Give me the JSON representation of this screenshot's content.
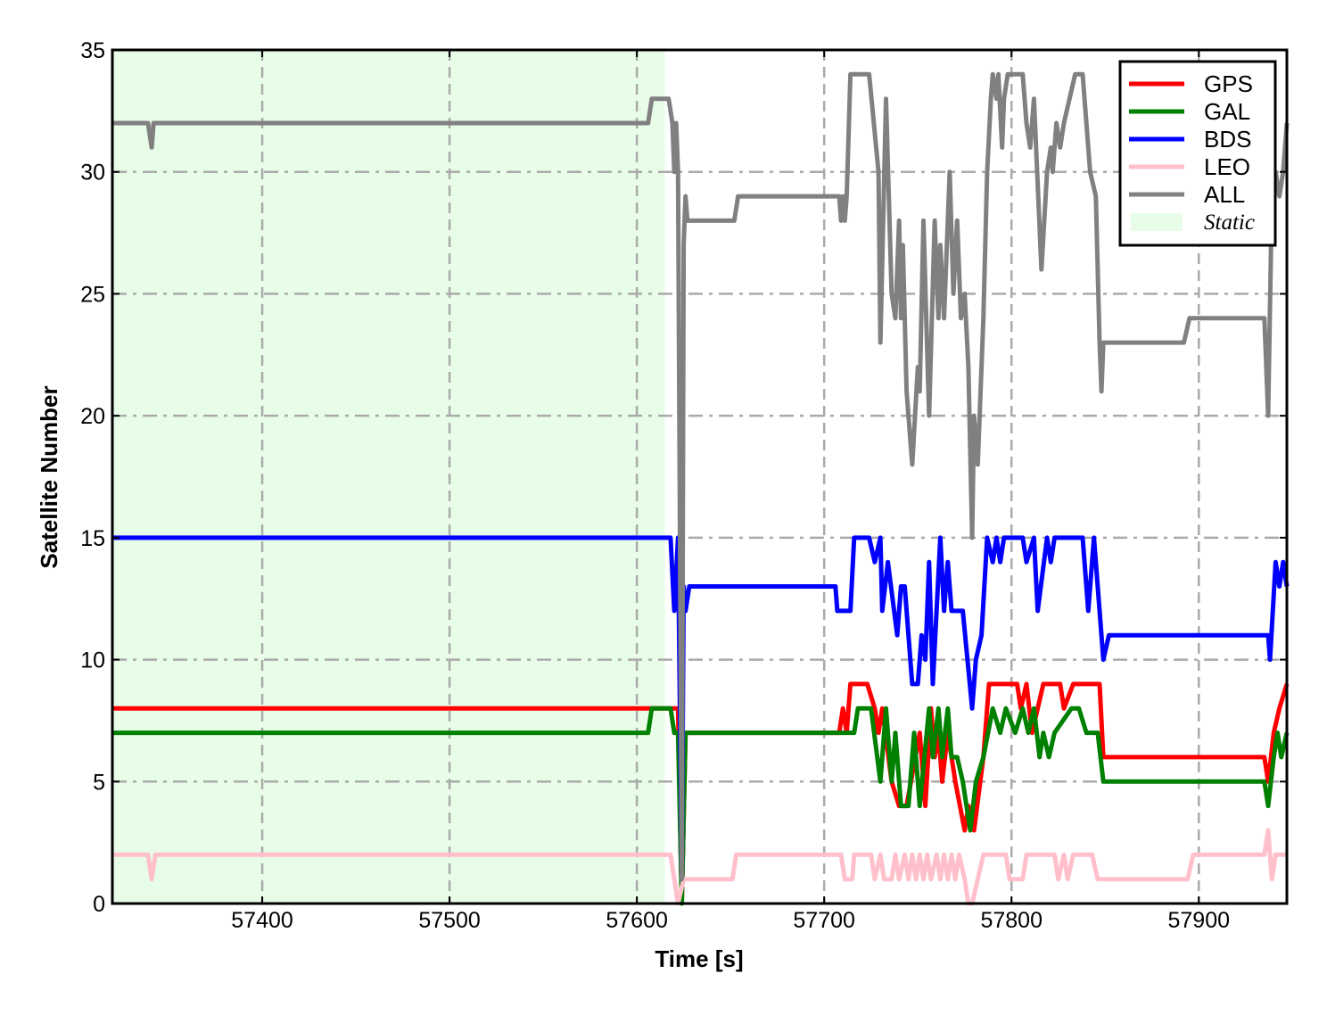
{
  "chart_data": {
    "type": "line",
    "xlabel": "Time [s]",
    "ylabel": "Satellite Number",
    "xlim": [
      57320,
      57947
    ],
    "ylim": [
      0,
      35
    ],
    "xticks": [
      57400,
      57500,
      57600,
      57700,
      57800,
      57900
    ],
    "yticks": [
      0,
      5,
      10,
      15,
      20,
      25,
      30,
      35
    ],
    "grid": true,
    "legend_position": "top-right",
    "shaded_region": {
      "name": "Static",
      "x": [
        57320,
        57615
      ],
      "color": "#e8fde8"
    },
    "series": [
      {
        "name": "GPS",
        "color": "#ff0000",
        "points": [
          [
            57320,
            8
          ],
          [
            57618,
            8
          ],
          [
            57622,
            8
          ],
          [
            57624,
            0
          ],
          [
            57626,
            7
          ],
          [
            57708,
            7
          ],
          [
            57710,
            8
          ],
          [
            57712,
            7
          ],
          [
            57714,
            9
          ],
          [
            57723,
            9
          ],
          [
            57727,
            8
          ],
          [
            57729,
            7
          ],
          [
            57731,
            8
          ],
          [
            57736,
            5
          ],
          [
            57740,
            4
          ],
          [
            57744,
            4
          ],
          [
            57751,
            7
          ],
          [
            57754,
            4
          ],
          [
            57757,
            8
          ],
          [
            57759,
            6
          ],
          [
            57761,
            7
          ],
          [
            57763,
            5
          ],
          [
            57766,
            7
          ],
          [
            57770,
            5
          ],
          [
            57775,
            3
          ],
          [
            57777,
            4
          ],
          [
            57780,
            3
          ],
          [
            57785,
            6
          ],
          [
            57788,
            9
          ],
          [
            57803,
            9
          ],
          [
            57805,
            8
          ],
          [
            57808,
            9
          ],
          [
            57811,
            7
          ],
          [
            57817,
            9
          ],
          [
            57826,
            9
          ],
          [
            57828,
            8
          ],
          [
            57833,
            9
          ],
          [
            57847,
            9
          ],
          [
            57849,
            6
          ],
          [
            57935,
            6
          ],
          [
            57937,
            5
          ],
          [
            57940,
            7
          ],
          [
            57943,
            8
          ],
          [
            57947,
            9
          ]
        ]
      },
      {
        "name": "GAL",
        "color": "#008000",
        "points": [
          [
            57320,
            7
          ],
          [
            57606,
            7
          ],
          [
            57608,
            8
          ],
          [
            57618,
            8
          ],
          [
            57620,
            7
          ],
          [
            57622,
            7
          ],
          [
            57624,
            0
          ],
          [
            57626,
            7
          ],
          [
            57716,
            7
          ],
          [
            57718,
            8
          ],
          [
            57725,
            8
          ],
          [
            57730,
            5
          ],
          [
            57733,
            8
          ],
          [
            57736,
            5
          ],
          [
            57738,
            7
          ],
          [
            57741,
            4
          ],
          [
            57745,
            4
          ],
          [
            57748,
            7
          ],
          [
            57751,
            4
          ],
          [
            57756,
            8
          ],
          [
            57758,
            6
          ],
          [
            57761,
            8
          ],
          [
            57763,
            6
          ],
          [
            57766,
            8
          ],
          [
            57768,
            6
          ],
          [
            57771,
            6
          ],
          [
            57774,
            5
          ],
          [
            57778,
            3
          ],
          [
            57781,
            5
          ],
          [
            57785,
            6
          ],
          [
            57790,
            8
          ],
          [
            57794,
            7
          ],
          [
            57797,
            8
          ],
          [
            57802,
            7
          ],
          [
            57806,
            8
          ],
          [
            57809,
            7
          ],
          [
            57812,
            8
          ],
          [
            57815,
            6
          ],
          [
            57817,
            7
          ],
          [
            57820,
            6
          ],
          [
            57823,
            7
          ],
          [
            57832,
            8
          ],
          [
            57836,
            8
          ],
          [
            57840,
            7
          ],
          [
            57846,
            7
          ],
          [
            57849,
            5
          ],
          [
            57935,
            5
          ],
          [
            57937,
            4
          ],
          [
            57940,
            6
          ],
          [
            57942,
            7
          ],
          [
            57944,
            6
          ],
          [
            57947,
            7
          ]
        ]
      },
      {
        "name": "BDS",
        "color": "#0000ff",
        "points": [
          [
            57320,
            15
          ],
          [
            57618,
            15
          ],
          [
            57620,
            12
          ],
          [
            57622,
            15
          ],
          [
            57624,
            1
          ],
          [
            57625,
            13
          ],
          [
            57626,
            12
          ],
          [
            57628,
            13
          ],
          [
            57706,
            13
          ],
          [
            57707,
            12
          ],
          [
            57714,
            12
          ],
          [
            57716,
            15
          ],
          [
            57724,
            15
          ],
          [
            57727,
            14
          ],
          [
            57730,
            15
          ],
          [
            57731,
            12
          ],
          [
            57734,
            14
          ],
          [
            57739,
            11
          ],
          [
            57741,
            13
          ],
          [
            57743,
            13
          ],
          [
            57747,
            9
          ],
          [
            57750,
            9
          ],
          [
            57752,
            11
          ],
          [
            57754,
            10
          ],
          [
            57756,
            14
          ],
          [
            57758,
            9
          ],
          [
            57760,
            12
          ],
          [
            57762,
            15
          ],
          [
            57764,
            12
          ],
          [
            57766,
            14
          ],
          [
            57768,
            12
          ],
          [
            57770,
            12
          ],
          [
            57774,
            12
          ],
          [
            57779,
            8
          ],
          [
            57781,
            10
          ],
          [
            57784,
            11
          ],
          [
            57787,
            15
          ],
          [
            57790,
            14
          ],
          [
            57792,
            15
          ],
          [
            57794,
            14
          ],
          [
            57796,
            15
          ],
          [
            57806,
            15
          ],
          [
            57808,
            14
          ],
          [
            57812,
            15
          ],
          [
            57814,
            12
          ],
          [
            57819,
            15
          ],
          [
            57821,
            14
          ],
          [
            57823,
            15
          ],
          [
            57838,
            15
          ],
          [
            57841,
            12
          ],
          [
            57844,
            15
          ],
          [
            57849,
            10
          ],
          [
            57852,
            11
          ],
          [
            57937,
            11
          ],
          [
            57938,
            10
          ],
          [
            57941,
            14
          ],
          [
            57943,
            13
          ],
          [
            57945,
            14
          ],
          [
            57947,
            13
          ]
        ]
      },
      {
        "name": "LEO",
        "color": "#ffc0cb",
        "points": [
          [
            57320,
            2
          ],
          [
            57339,
            2
          ],
          [
            57341,
            1
          ],
          [
            57343,
            2
          ],
          [
            57618,
            2
          ],
          [
            57622,
            0
          ],
          [
            57625,
            1
          ],
          [
            57651,
            1
          ],
          [
            57653,
            2
          ],
          [
            57709,
            2
          ],
          [
            57711,
            1
          ],
          [
            57715,
            1
          ],
          [
            57716,
            2
          ],
          [
            57725,
            2
          ],
          [
            57727,
            1
          ],
          [
            57730,
            2
          ],
          [
            57732,
            1
          ],
          [
            57736,
            1
          ],
          [
            57738,
            2
          ],
          [
            57740,
            1
          ],
          [
            57743,
            2
          ],
          [
            57745,
            1
          ],
          [
            57747,
            2
          ],
          [
            57749,
            1
          ],
          [
            57751,
            2
          ],
          [
            57753,
            1
          ],
          [
            57755,
            2
          ],
          [
            57757,
            1
          ],
          [
            57760,
            2
          ],
          [
            57762,
            1
          ],
          [
            57764,
            2
          ],
          [
            57766,
            1
          ],
          [
            57768,
            2
          ],
          [
            57770,
            1
          ],
          [
            57772,
            2
          ],
          [
            57775,
            1
          ],
          [
            57777,
            0
          ],
          [
            57779,
            0
          ],
          [
            57782,
            1
          ],
          [
            57785,
            2
          ],
          [
            57797,
            2
          ],
          [
            57799,
            1
          ],
          [
            57806,
            1
          ],
          [
            57808,
            2
          ],
          [
            57823,
            2
          ],
          [
            57825,
            1
          ],
          [
            57828,
            2
          ],
          [
            57830,
            1
          ],
          [
            57833,
            2
          ],
          [
            57843,
            2
          ],
          [
            57846,
            1
          ],
          [
            57894,
            1
          ],
          [
            57897,
            2
          ],
          [
            57935,
            2
          ],
          [
            57937,
            3
          ],
          [
            57939,
            1
          ],
          [
            57941,
            2
          ],
          [
            57947,
            2
          ]
        ]
      },
      {
        "name": "ALL",
        "color": "#808080",
        "points": [
          [
            57320,
            32
          ],
          [
            57339,
            32
          ],
          [
            57341,
            31
          ],
          [
            57342,
            32
          ],
          [
            57606,
            32
          ],
          [
            57608,
            33
          ],
          [
            57617,
            33
          ],
          [
            57619,
            32
          ],
          [
            57620,
            30
          ],
          [
            57621,
            32
          ],
          [
            57622,
            30
          ],
          [
            57624,
            1
          ],
          [
            57625,
            27
          ],
          [
            57626,
            29
          ],
          [
            57627,
            28
          ],
          [
            57652,
            28
          ],
          [
            57654,
            29
          ],
          [
            57708,
            29
          ],
          [
            57709,
            28
          ],
          [
            57710,
            29
          ],
          [
            57711,
            28
          ],
          [
            57712,
            29
          ],
          [
            57714,
            34
          ],
          [
            57724,
            34
          ],
          [
            57729,
            30
          ],
          [
            57730,
            23
          ],
          [
            57733,
            33
          ],
          [
            57736,
            25
          ],
          [
            57738,
            24
          ],
          [
            57740,
            28
          ],
          [
            57741,
            24
          ],
          [
            57742,
            27
          ],
          [
            57744,
            21
          ],
          [
            57746,
            19
          ],
          [
            57747,
            18
          ],
          [
            57750,
            22
          ],
          [
            57751,
            21
          ],
          [
            57753,
            28
          ],
          [
            57756,
            20
          ],
          [
            57759,
            28
          ],
          [
            57761,
            24
          ],
          [
            57762,
            27
          ],
          [
            57764,
            24
          ],
          [
            57767,
            30
          ],
          [
            57769,
            25
          ],
          [
            57771,
            28
          ],
          [
            57773,
            24
          ],
          [
            57775,
            25
          ],
          [
            57777,
            22
          ],
          [
            57779,
            15
          ],
          [
            57780,
            20
          ],
          [
            57782,
            18
          ],
          [
            57783,
            20
          ],
          [
            57785,
            24
          ],
          [
            57787,
            30
          ],
          [
            57789,
            33
          ],
          [
            57790,
            34
          ],
          [
            57792,
            33
          ],
          [
            57793,
            34
          ],
          [
            57795,
            31
          ],
          [
            57796,
            33
          ],
          [
            57798,
            34
          ],
          [
            57806,
            34
          ],
          [
            57808,
            32
          ],
          [
            57810,
            31
          ],
          [
            57812,
            33
          ],
          [
            57816,
            26
          ],
          [
            57819,
            30
          ],
          [
            57821,
            31
          ],
          [
            57822,
            30
          ],
          [
            57824,
            32
          ],
          [
            57826,
            31
          ],
          [
            57828,
            32
          ],
          [
            57834,
            34
          ],
          [
            57838,
            34
          ],
          [
            57842,
            30
          ],
          [
            57845,
            29
          ],
          [
            57847,
            23
          ],
          [
            57848,
            21
          ],
          [
            57849,
            23
          ],
          [
            57892,
            23
          ],
          [
            57895,
            24
          ],
          [
            57935,
            24
          ],
          [
            57937,
            20
          ],
          [
            57939,
            29
          ],
          [
            57941,
            30
          ],
          [
            57943,
            29
          ],
          [
            57945,
            30
          ],
          [
            57947,
            32
          ]
        ]
      }
    ]
  }
}
